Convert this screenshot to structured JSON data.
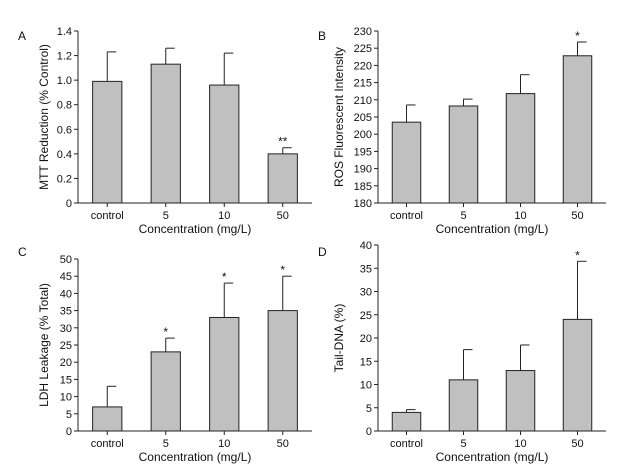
{
  "chart_data": [
    {
      "panel": "A",
      "type": "bar",
      "categories": [
        "control",
        "5",
        "10",
        "50"
      ],
      "values": [
        0.99,
        1.13,
        0.96,
        0.4
      ],
      "errors": [
        0.24,
        0.13,
        0.26,
        0.05
      ],
      "significance": [
        "",
        "",
        "",
        "**"
      ],
      "xlabel": "Concentration (mg/L)",
      "ylabel": "MTT Reduction (% Control)",
      "ylim": [
        0,
        1.4
      ],
      "yticks": [
        0,
        0.2,
        0.4,
        0.6,
        0.8,
        1.0,
        1.2,
        1.4
      ],
      "ytick_labels": [
        "0",
        "0.2",
        "0.4",
        "0.6",
        "0.8",
        "1.0",
        "1.2",
        "1.4"
      ],
      "bar_color": "#c0c0c0"
    },
    {
      "panel": "B",
      "type": "bar",
      "categories": [
        "control",
        "5",
        "10",
        "50"
      ],
      "values": [
        203.5,
        208.2,
        211.8,
        222.8
      ],
      "errors": [
        5.0,
        2.0,
        5.5,
        4.0
      ],
      "significance": [
        "",
        "",
        "",
        "*"
      ],
      "xlabel": "Concentration (mg/L)",
      "ylabel": "ROS Fluorescent Intensity",
      "ylim": [
        180,
        230
      ],
      "yticks": [
        180,
        185,
        190,
        195,
        200,
        205,
        210,
        215,
        220,
        225,
        230
      ],
      "ytick_labels": [
        "180",
        "185",
        "190",
        "195",
        "200",
        "205",
        "210",
        "215",
        "220",
        "225",
        "230"
      ],
      "bar_color": "#c0c0c0"
    },
    {
      "panel": "C",
      "type": "bar",
      "categories": [
        "control",
        "5",
        "10",
        "50"
      ],
      "values": [
        7.0,
        23.0,
        33.0,
        35.0
      ],
      "errors": [
        6.0,
        4.0,
        10.0,
        10.0
      ],
      "significance": [
        "",
        "*",
        "*",
        "*"
      ],
      "xlabel": "Concentration (mg/L)",
      "ylabel": "LDH Leakage (% Total)",
      "ylim": [
        0,
        50
      ],
      "yticks": [
        0,
        5,
        10,
        15,
        20,
        25,
        30,
        35,
        40,
        45,
        50
      ],
      "ytick_labels": [
        "0",
        "5",
        "10",
        "15",
        "20",
        "25",
        "30",
        "35",
        "40",
        "45",
        "50"
      ],
      "bar_color": "#c0c0c0"
    },
    {
      "panel": "D",
      "type": "bar",
      "categories": [
        "control",
        "5",
        "10",
        "50"
      ],
      "values": [
        4.0,
        11.0,
        13.0,
        24.0
      ],
      "errors": [
        0.6,
        6.5,
        5.5,
        12.5
      ],
      "significance": [
        "",
        "",
        "",
        "*"
      ],
      "xlabel": "Concentration (mg/L)",
      "ylabel": "Tail-DNA (%)",
      "ylim": [
        0,
        40
      ],
      "yticks": [
        0,
        5,
        10,
        15,
        20,
        25,
        30,
        35,
        40
      ],
      "ytick_labels": [
        "0",
        "5",
        "10",
        "15",
        "20",
        "25",
        "30",
        "35",
        "40"
      ],
      "bar_color": "#c0c0c0"
    }
  ]
}
